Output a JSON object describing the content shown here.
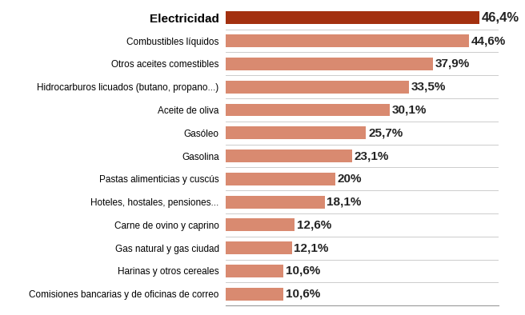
{
  "chart_data": {
    "type": "bar",
    "orientation": "horizontal",
    "categories": [
      "Electricidad",
      "Combustibles líquidos",
      "Otros aceites comestibles",
      "Hidrocarburos licuados (butano, propano...)",
      "Aceite de oliva",
      "Gasóleo",
      "Gasolina",
      "Pastas alimenticias y cuscús",
      "Hoteles, hostales, pensiones...",
      "Carne de ovino y caprino",
      "Gas natural y gas ciudad",
      "Harinas y otros cereales",
      "Comisiones bancarias y de oficinas de correo"
    ],
    "values": [
      46.4,
      44.6,
      37.9,
      33.5,
      30.1,
      25.7,
      23.1,
      20,
      18.1,
      12.6,
      12.1,
      10.6,
      10.6
    ],
    "value_labels": [
      "46,4%",
      "44,6%",
      "37,9%",
      "33,5%",
      "30,1%",
      "25,7%",
      "23,1%",
      "20%",
      "18,1%",
      "12,6%",
      "12,1%",
      "10,6%",
      "10,6%"
    ],
    "colors": [
      "#a3300f",
      "#d98a70",
      "#d98a70",
      "#d98a70",
      "#d98a70",
      "#d98a70",
      "#d98a70",
      "#d98a70",
      "#d98a70",
      "#d98a70",
      "#d98a70",
      "#d98a70",
      "#d98a70"
    ],
    "xlim": [
      0,
      50
    ],
    "data_labels": true,
    "tick_labels": "y",
    "grid": false
  }
}
